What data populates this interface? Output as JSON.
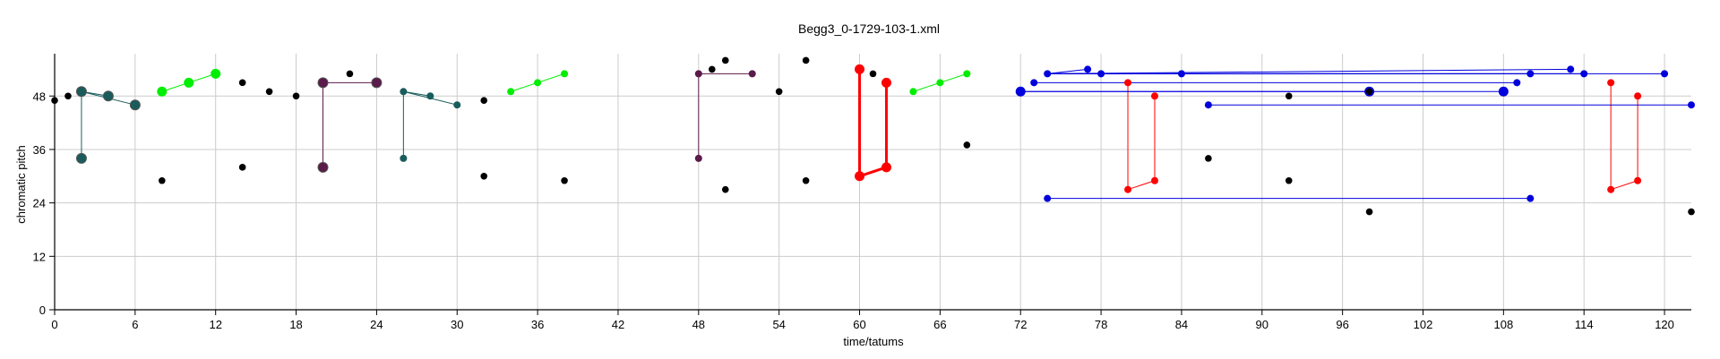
{
  "chart_data": {
    "type": "scatter",
    "title": "Begg3_0-1729-103-1.xml",
    "xlabel": "time/tatums",
    "ylabel": "chromatic pitch",
    "xlim": [
      0,
      122
    ],
    "ylim": [
      0,
      57.5
    ],
    "xticks": [
      0,
      6,
      12,
      18,
      24,
      30,
      36,
      42,
      48,
      54,
      60,
      66,
      72,
      78,
      84,
      90,
      96,
      102,
      108,
      114,
      120
    ],
    "yticks": [
      0,
      12,
      24,
      36,
      48
    ],
    "grid": true,
    "colors": {
      "teal": "#1a5c5c",
      "green": "#00ee00",
      "purple": "#5a1a4a",
      "red": "#ff0000",
      "blue": "#0000dd",
      "black": "#000000",
      "grid": "#cccccc"
    },
    "black_points": [
      [
        0,
        47
      ],
      [
        1,
        48
      ],
      [
        8,
        29
      ],
      [
        14,
        51
      ],
      [
        14,
        32
      ],
      [
        16,
        49
      ],
      [
        18,
        48
      ],
      [
        22,
        53
      ],
      [
        32,
        47
      ],
      [
        32,
        30
      ],
      [
        38,
        29
      ],
      [
        49,
        54
      ],
      [
        50,
        56
      ],
      [
        50,
        27
      ],
      [
        54,
        49
      ],
      [
        56,
        56
      ],
      [
        56,
        29
      ],
      [
        61,
        53
      ],
      [
        68,
        37
      ],
      [
        86,
        34
      ],
      [
        92,
        48
      ],
      [
        92,
        29
      ],
      [
        98,
        49
      ],
      [
        98,
        22
      ],
      [
        122,
        22
      ]
    ],
    "groups": [
      {
        "color": "teal",
        "size": "large",
        "kind": "connect",
        "points": [
          [
            2,
            49
          ],
          [
            2,
            34
          ],
          [
            4,
            48
          ],
          [
            6,
            46
          ]
        ]
      },
      {
        "color": "teal",
        "size": "small",
        "kind": "connect",
        "points": [
          [
            26,
            49
          ],
          [
            26,
            34
          ],
          [
            28,
            48
          ],
          [
            30,
            46
          ]
        ]
      },
      {
        "color": "green",
        "size": "large",
        "kind": "chain",
        "points": [
          [
            8,
            49
          ],
          [
            10,
            51
          ],
          [
            12,
            53
          ]
        ]
      },
      {
        "color": "green",
        "size": "small",
        "kind": "chain",
        "points": [
          [
            34,
            49
          ],
          [
            36,
            51
          ],
          [
            38,
            53
          ]
        ]
      },
      {
        "color": "green",
        "size": "small",
        "kind": "chain",
        "points": [
          [
            64,
            49
          ],
          [
            66,
            51
          ],
          [
            68,
            53
          ]
        ]
      },
      {
        "color": "purple",
        "size": "large",
        "kind": "connect",
        "points": [
          [
            20,
            51
          ],
          [
            20,
            32
          ],
          [
            24,
            51
          ]
        ]
      },
      {
        "color": "purple",
        "size": "small",
        "kind": "connect",
        "points": [
          [
            48,
            53
          ],
          [
            48,
            34
          ],
          [
            52,
            53
          ]
        ]
      },
      {
        "color": "red",
        "size": "large",
        "kind": "chain",
        "width": 3,
        "points": [
          [
            60,
            54
          ],
          [
            60,
            30
          ],
          [
            62,
            32
          ],
          [
            62,
            51
          ]
        ]
      },
      {
        "color": "red",
        "size": "small",
        "kind": "chain",
        "points": [
          [
            80,
            51
          ],
          [
            80,
            27
          ],
          [
            82,
            29
          ],
          [
            82,
            48
          ]
        ]
      },
      {
        "color": "red",
        "size": "small",
        "kind": "chain",
        "points": [
          [
            116,
            51
          ],
          [
            116,
            27
          ],
          [
            118,
            29
          ],
          [
            118,
            48
          ]
        ]
      },
      {
        "color": "blue",
        "size": "large",
        "kind": "connect",
        "points": [
          [
            72,
            49
          ],
          [
            108,
            49
          ],
          [
            98,
            49
          ]
        ]
      },
      {
        "color": "blue",
        "size": "small",
        "kind": "connect",
        "points": [
          [
            73,
            51
          ],
          [
            109,
            51
          ]
        ]
      },
      {
        "color": "blue",
        "size": "small",
        "kind": "connect",
        "points": [
          [
            74,
            53
          ],
          [
            77,
            54
          ],
          [
            113,
            54
          ],
          [
            114,
            53
          ],
          [
            120,
            53
          ],
          [
            110,
            53
          ],
          [
            78,
            53
          ],
          [
            84,
            53
          ]
        ]
      },
      {
        "color": "blue",
        "size": "small",
        "kind": "connect",
        "points": [
          [
            86,
            46
          ],
          [
            122,
            46
          ]
        ]
      },
      {
        "color": "blue",
        "size": "small",
        "kind": "connect",
        "points": [
          [
            74,
            25
          ],
          [
            110,
            25
          ]
        ]
      }
    ]
  }
}
